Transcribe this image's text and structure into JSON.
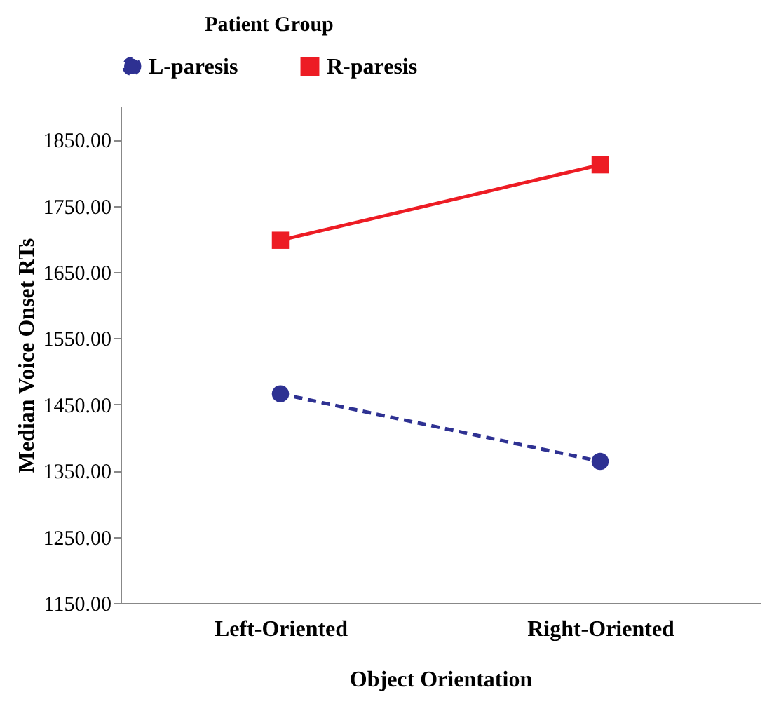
{
  "chart_data": {
    "type": "line",
    "legend_title": "Patient Group",
    "xlabel": "Object Orientation",
    "ylabel": "Median Voice Onset RTs",
    "categories": [
      "Left-Oriented",
      "Right-Oriented"
    ],
    "series": [
      {
        "name": "L-paresis",
        "color": "#2e3192",
        "values": [
          1466,
          1364
        ],
        "marker": "circle",
        "line_style": "dashed"
      },
      {
        "name": "R-paresis",
        "color": "#ed1c24",
        "values": [
          1698,
          1812
        ],
        "marker": "square",
        "line_style": "solid"
      }
    ],
    "ylim": [
      1150,
      1900
    ],
    "yticks": [
      {
        "value": 1150,
        "label": "1150.00"
      },
      {
        "value": 1250,
        "label": "1250.00"
      },
      {
        "value": 1350,
        "label": "1350.00"
      },
      {
        "value": 1450,
        "label": "1450.00"
      },
      {
        "value": 1550,
        "label": "1550.00"
      },
      {
        "value": 1650,
        "label": "1650.00"
      },
      {
        "value": 1750,
        "label": "1750.00"
      },
      {
        "value": 1850,
        "label": "1850.00"
      }
    ],
    "grid": false,
    "legend": "top"
  }
}
